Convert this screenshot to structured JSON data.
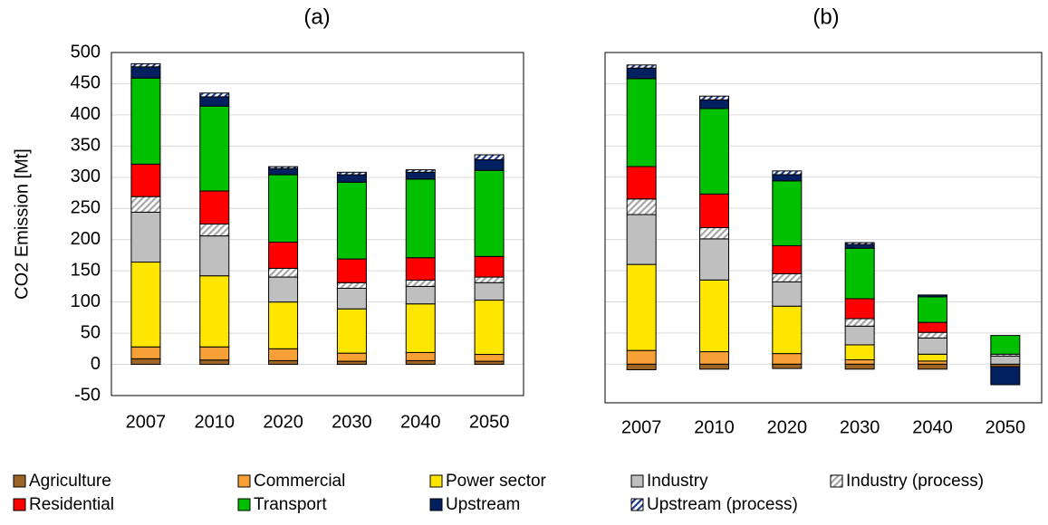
{
  "chart_data": [
    {
      "type": "stacked-bar",
      "title": "(a)",
      "y_label": "CO2 Emission [Mt]",
      "categories": [
        "2007",
        "2010",
        "2020",
        "2030",
        "2040",
        "2050"
      ],
      "ylim": [
        -50,
        500
      ],
      "yticks": [
        -50,
        0,
        50,
        100,
        150,
        200,
        250,
        300,
        350,
        400,
        450,
        500
      ],
      "grid": true,
      "ytick_labels": true,
      "series": [
        {
          "name": "Agriculture",
          "color": "#9c6526",
          "hatch": false,
          "values": [
            9,
            7,
            6,
            5,
            6,
            5
          ]
        },
        {
          "name": "Commercial",
          "color": "#f7a035",
          "hatch": false,
          "values": [
            19,
            21,
            19,
            13,
            13,
            11
          ]
        },
        {
          "name": "Power sector",
          "color": "#ffe600",
          "hatch": false,
          "values": [
            136,
            114,
            75,
            71,
            78,
            87
          ]
        },
        {
          "name": "Industry",
          "color": "#bfbfbf",
          "hatch": false,
          "values": [
            80,
            64,
            40,
            33,
            28,
            28
          ]
        },
        {
          "name": "Industry (process)",
          "color": "#a6a6a6",
          "hatch": true,
          "values": [
            25,
            19,
            14,
            9,
            10,
            9
          ]
        },
        {
          "name": "Residential",
          "color": "#ff0000",
          "hatch": false,
          "values": [
            52,
            53,
            42,
            38,
            36,
            33
          ]
        },
        {
          "name": "Transport",
          "color": "#00c000",
          "hatch": false,
          "values": [
            138,
            136,
            108,
            123,
            126,
            138
          ]
        },
        {
          "name": "Upstream",
          "color": "#002060",
          "hatch": false,
          "values": [
            18,
            15,
            10,
            12,
            11,
            17
          ]
        },
        {
          "name": "Upstream (process)",
          "color": "#1f3b8c",
          "hatch": true,
          "values": [
            5,
            6,
            3,
            4,
            4,
            8
          ]
        }
      ]
    },
    {
      "type": "stacked-bar",
      "title": "(b)",
      "categories": [
        "2007",
        "2010",
        "2020",
        "2030",
        "2040",
        "2050"
      ],
      "ylim": [
        -62,
        500
      ],
      "yticks": [
        0,
        50,
        100,
        150,
        200,
        250,
        300,
        350,
        400,
        450,
        500
      ],
      "grid": true,
      "ytick_labels": false,
      "series": [
        {
          "name": "Agriculture",
          "color": "#9c6526",
          "hatch": false,
          "values": [
            -9,
            -8,
            -7,
            -8,
            -8,
            -4
          ]
        },
        {
          "name": "Commercial",
          "color": "#f7a035",
          "hatch": false,
          "values": [
            22,
            20,
            17,
            7,
            5,
            0
          ]
        },
        {
          "name": "Power sector",
          "color": "#ffe600",
          "hatch": false,
          "values": [
            138,
            115,
            76,
            24,
            11,
            0
          ]
        },
        {
          "name": "Industry",
          "color": "#bfbfbf",
          "hatch": false,
          "values": [
            80,
            66,
            39,
            30,
            26,
            13
          ]
        },
        {
          "name": "Industry (process)",
          "color": "#a6a6a6",
          "hatch": true,
          "values": [
            25,
            18,
            13,
            12,
            9,
            3
          ]
        },
        {
          "name": "Residential",
          "color": "#ff0000",
          "hatch": false,
          "values": [
            52,
            54,
            45,
            32,
            16,
            0
          ]
        },
        {
          "name": "Transport",
          "color": "#00c000",
          "hatch": false,
          "values": [
            141,
            137,
            104,
            81,
            41,
            30
          ]
        },
        {
          "name": "Upstream",
          "color": "#002060",
          "hatch": false,
          "values": [
            17,
            14,
            10,
            6,
            3,
            -29
          ]
        },
        {
          "name": "Upstream (process)",
          "color": "#1f3b8c",
          "hatch": true,
          "values": [
            5,
            6,
            6,
            3,
            0,
            0
          ]
        }
      ]
    }
  ]
}
